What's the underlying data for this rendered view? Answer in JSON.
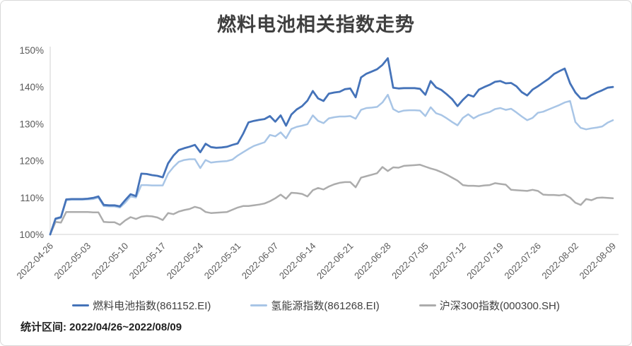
{
  "page": {
    "footer": "统计区间: 2022/04/26~2022/08/09"
  },
  "chart_data": {
    "type": "line",
    "title": "燃料电池相关指数走势",
    "xlabel": "",
    "ylabel": "",
    "ylim": [
      100,
      150
    ],
    "y_ticks": [
      100,
      110,
      120,
      130,
      140,
      150
    ],
    "y_tick_suffix": "%",
    "grid": false,
    "legend_position": "bottom",
    "x_unit": "calendar day offset from 2022-04-26",
    "x_tick_day_offsets": [
      0,
      7,
      14,
      21,
      28,
      35,
      42,
      49,
      56,
      63,
      70,
      77,
      84,
      91,
      98,
      105
    ],
    "x_tick_labels": [
      "2022-04-26",
      "2022-05-03",
      "2022-05-10",
      "2022-05-17",
      "2022-05-24",
      "2022-05-31",
      "2022-06-07",
      "2022-06-14",
      "2022-06-21",
      "2022-06-28",
      "2022-07-05",
      "2022-07-12",
      "2022-07-19",
      "2022-07-26",
      "2022-08-02",
      "2022-08-09"
    ],
    "series": [
      {
        "name": "燃料电池指数(861152.EI)",
        "color": "#4573B9",
        "width": 2.8,
        "values": [
          100.0,
          104.3,
          104.7,
          109.5,
          109.6,
          109.6,
          109.6,
          109.7,
          109.9,
          110.3,
          108.0,
          107.9,
          107.9,
          107.6,
          109.3,
          110.9,
          110.4,
          116.5,
          116.4,
          116.1,
          115.9,
          115.5,
          119.3,
          121.4,
          122.9,
          123.4,
          123.8,
          124.3,
          122.3,
          124.6,
          123.7,
          123.5,
          123.6,
          123.8,
          124.3,
          124.7,
          127.3,
          130.4,
          130.8,
          131.1,
          131.3,
          132.1,
          130.6,
          132.3,
          129.5,
          132.5,
          133.9,
          134.8,
          136.3,
          138.9,
          136.9,
          136.2,
          138.2,
          138.5,
          138.7,
          139.4,
          139.6,
          137.2,
          142.6,
          143.6,
          144.2,
          144.8,
          146.0,
          147.8,
          139.8,
          139.6,
          139.7,
          139.7,
          139.7,
          139.5,
          137.9,
          141.6,
          139.9,
          139.2,
          138.0,
          136.7,
          134.8,
          136.5,
          137.9,
          137.4,
          139.3,
          140.0,
          140.6,
          141.4,
          141.6,
          141.0,
          141.1,
          140.2,
          138.6,
          137.7,
          139.3,
          140.2,
          141.2,
          142.2,
          143.5,
          144.3,
          145.0,
          141.0,
          138.5,
          136.9,
          136.9,
          137.8,
          138.5,
          139.1,
          139.8,
          140.0
        ]
      },
      {
        "name": "氢能源指数(861268.EI)",
        "color": "#A8C5E6",
        "width": 2.5,
        "values": [
          100.0,
          104.1,
          104.5,
          109.3,
          109.4,
          109.4,
          109.4,
          109.5,
          109.6,
          110.0,
          107.7,
          107.6,
          107.6,
          107.3,
          108.6,
          110.3,
          110.0,
          113.4,
          113.4,
          113.3,
          113.3,
          113.3,
          116.5,
          118.3,
          119.7,
          120.2,
          120.4,
          120.4,
          118.0,
          120.2,
          119.5,
          119.7,
          119.8,
          119.9,
          120.3,
          121.4,
          122.3,
          123.2,
          124.0,
          124.5,
          125.0,
          127.0,
          126.6,
          127.7,
          126.1,
          128.6,
          129.2,
          129.5,
          129.9,
          132.3,
          130.8,
          130.2,
          131.5,
          131.8,
          132.0,
          132.0,
          132.1,
          131.4,
          133.8,
          134.3,
          134.4,
          134.6,
          135.8,
          137.9,
          134.0,
          133.2,
          133.6,
          133.7,
          133.7,
          133.6,
          132.1,
          134.5,
          132.9,
          132.4,
          131.5,
          130.5,
          129.6,
          131.6,
          132.6,
          131.5,
          132.3,
          132.8,
          133.2,
          134.0,
          134.3,
          133.8,
          134.1,
          133.1,
          132.0,
          131.0,
          131.6,
          133.0,
          133.3,
          133.9,
          134.5,
          135.1,
          135.8,
          136.2,
          130.5,
          128.9,
          128.5,
          128.8,
          129.0,
          129.3,
          130.3,
          131.0
        ]
      },
      {
        "name": "沪深300指数(000300.SH)",
        "color": "#ACACAC",
        "width": 2.5,
        "values": [
          100.0,
          103.4,
          103.2,
          106.1,
          106.1,
          106.1,
          106.1,
          106.1,
          106.0,
          106.0,
          103.4,
          103.3,
          103.3,
          102.6,
          103.8,
          104.7,
          104.2,
          104.8,
          105.0,
          104.9,
          104.6,
          103.9,
          105.8,
          105.5,
          106.2,
          106.6,
          106.9,
          107.5,
          107.1,
          106.1,
          105.8,
          105.9,
          106.0,
          106.1,
          106.7,
          107.3,
          107.7,
          107.7,
          107.9,
          108.1,
          108.4,
          109.0,
          109.8,
          110.8,
          109.7,
          111.3,
          111.2,
          111.0,
          110.3,
          112.0,
          112.6,
          112.2,
          113.0,
          113.6,
          114.0,
          114.2,
          114.2,
          112.8,
          115.4,
          115.8,
          116.2,
          116.6,
          118.3,
          117.2,
          118.2,
          118.1,
          118.6,
          118.7,
          118.8,
          118.9,
          118.4,
          117.9,
          117.5,
          116.9,
          116.2,
          115.4,
          114.6,
          113.4,
          113.2,
          113.2,
          113.1,
          113.3,
          113.4,
          113.9,
          113.7,
          113.5,
          112.1,
          112.0,
          111.9,
          111.8,
          112.1,
          111.8,
          110.8,
          110.7,
          110.7,
          110.6,
          110.8,
          110.0,
          108.6,
          108.0,
          109.6,
          109.3,
          109.9,
          110.0,
          109.9,
          109.8
        ]
      }
    ],
    "style": {
      "axis_line_color": "#d9d9d9",
      "tick_label_color": "#595959",
      "title_color": "#3f3f3f"
    }
  }
}
